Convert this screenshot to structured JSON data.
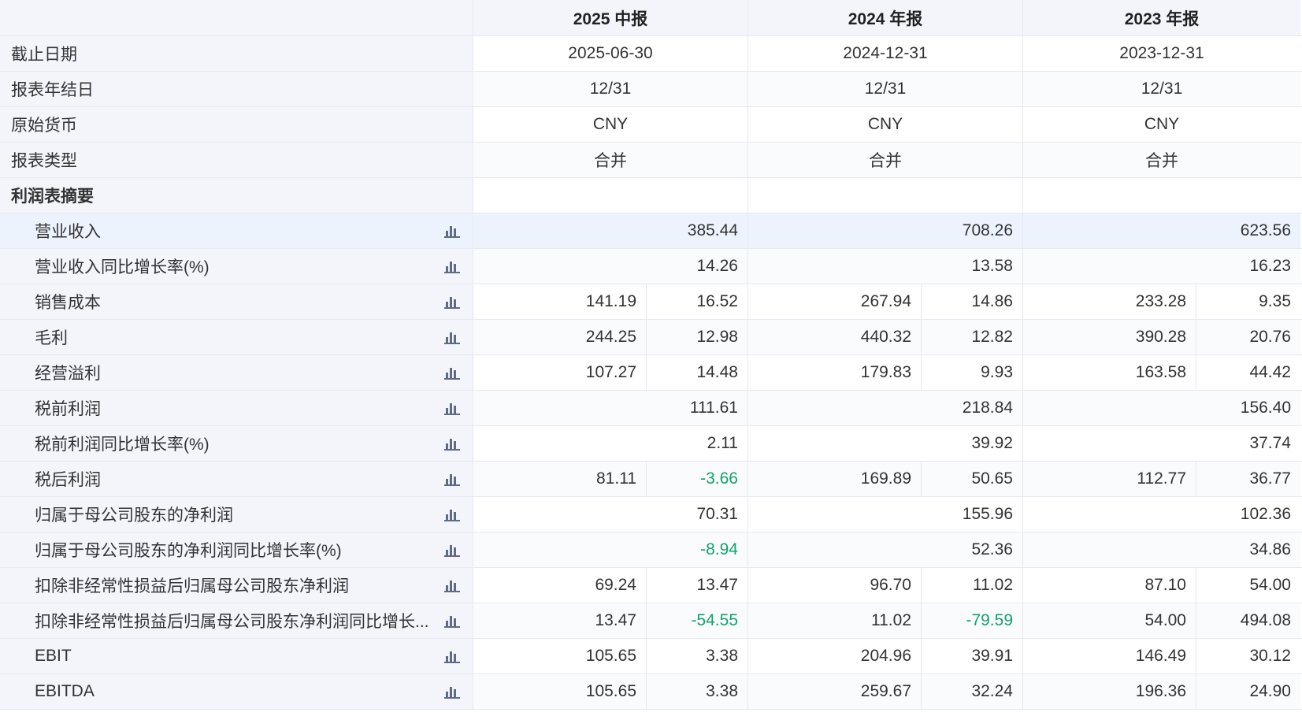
{
  "header": {
    "columns": [
      "2025 中报",
      "2024 年报",
      "2023 年报"
    ]
  },
  "info_rows": [
    {
      "label": "截止日期",
      "values": [
        "2025-06-30",
        "2024-12-31",
        "2023-12-31"
      ]
    },
    {
      "label": "报表年结日",
      "values": [
        "12/31",
        "12/31",
        "12/31"
      ]
    },
    {
      "label": "原始货币",
      "values": [
        "CNY",
        "CNY",
        "CNY"
      ]
    },
    {
      "label": "报表类型",
      "values": [
        "合并",
        "合并",
        "合并"
      ]
    }
  ],
  "section_title": "利润表摘要",
  "metrics": [
    {
      "label": "营业收入",
      "type": "single",
      "values": [
        "385.44",
        "708.26",
        "623.56"
      ],
      "highlight": true
    },
    {
      "label": "营业收入同比增长率(%)",
      "type": "single",
      "values": [
        "14.26",
        "13.58",
        "16.23"
      ]
    },
    {
      "label": "销售成本",
      "type": "pair",
      "values": [
        [
          "141.19",
          "16.52"
        ],
        [
          "267.94",
          "14.86"
        ],
        [
          "233.28",
          "9.35"
        ]
      ]
    },
    {
      "label": "毛利",
      "type": "pair",
      "values": [
        [
          "244.25",
          "12.98"
        ],
        [
          "440.32",
          "12.82"
        ],
        [
          "390.28",
          "20.76"
        ]
      ]
    },
    {
      "label": "经营溢利",
      "type": "pair",
      "values": [
        [
          "107.27",
          "14.48"
        ],
        [
          "179.83",
          "9.93"
        ],
        [
          "163.58",
          "44.42"
        ]
      ]
    },
    {
      "label": "税前利润",
      "type": "single",
      "values": [
        "111.61",
        "218.84",
        "156.40"
      ]
    },
    {
      "label": "税前利润同比增长率(%)",
      "type": "single",
      "values": [
        "2.11",
        "39.92",
        "37.74"
      ]
    },
    {
      "label": "税后利润",
      "type": "pair",
      "values": [
        [
          "81.11",
          "-3.66"
        ],
        [
          "169.89",
          "50.65"
        ],
        [
          "112.77",
          "36.77"
        ]
      ]
    },
    {
      "label": "归属于母公司股东的净利润",
      "type": "single",
      "values": [
        "70.31",
        "155.96",
        "102.36"
      ]
    },
    {
      "label": "归属于母公司股东的净利润同比增长率(%)",
      "type": "single",
      "values": [
        "-8.94",
        "52.36",
        "34.86"
      ]
    },
    {
      "label": "扣除非经常性损益后归属母公司股东净利润",
      "type": "pair",
      "values": [
        [
          "69.24",
          "13.47"
        ],
        [
          "96.70",
          "11.02"
        ],
        [
          "87.10",
          "54.00"
        ]
      ]
    },
    {
      "label": "扣除非经常性损益后归属母公司股东净利润同比增长...",
      "type": "pair",
      "values": [
        [
          "13.47",
          "-54.55"
        ],
        [
          "11.02",
          "-79.59"
        ],
        [
          "54.00",
          "494.08"
        ]
      ]
    },
    {
      "label": "EBIT",
      "type": "pair",
      "values": [
        [
          "105.65",
          "3.38"
        ],
        [
          "204.96",
          "39.91"
        ],
        [
          "146.49",
          "30.12"
        ]
      ]
    },
    {
      "label": "EBITDA",
      "type": "pair",
      "values": [
        [
          "105.65",
          "3.38"
        ],
        [
          "259.67",
          "32.24"
        ],
        [
          "196.36",
          "24.90"
        ]
      ]
    }
  ],
  "colors": {
    "negative": "#12a36a",
    "icon": "#5f6b85",
    "label_bg": "#f3f5fb",
    "highlight_bg": "#edf3fd"
  },
  "icons": {
    "metric_chart": "bar-chart-icon"
  }
}
